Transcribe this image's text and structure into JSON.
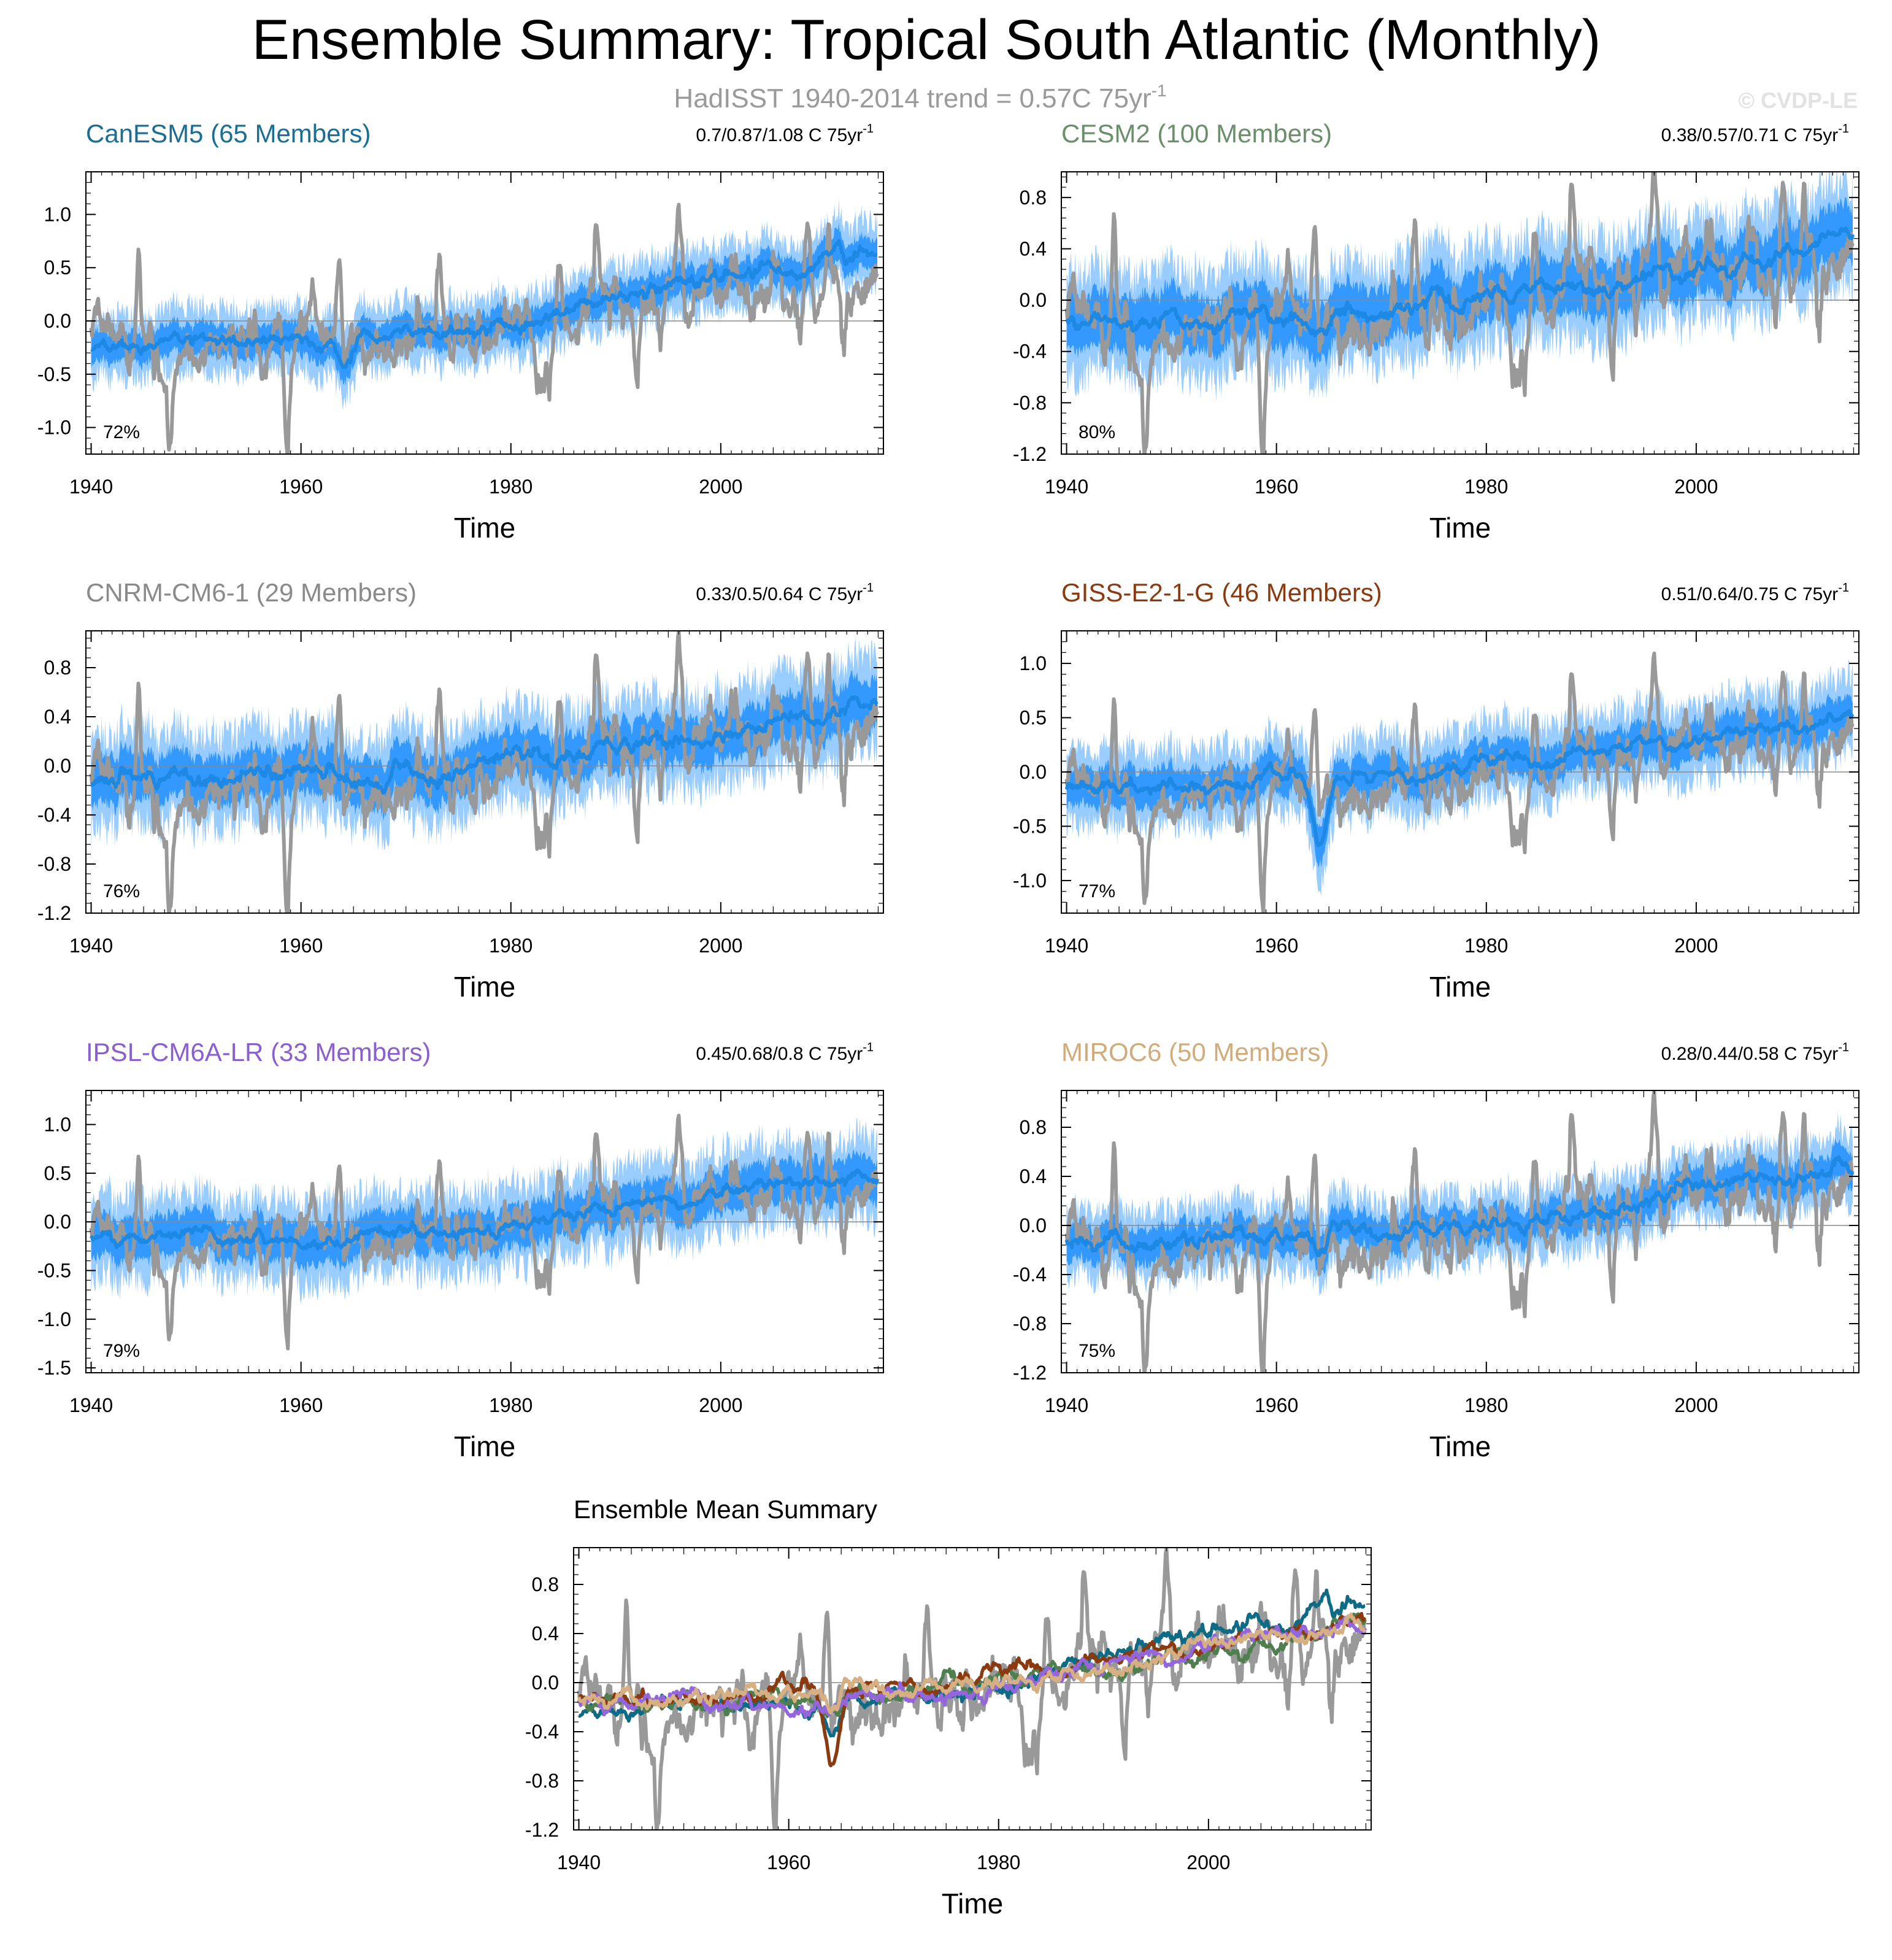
{
  "title": "Ensemble Summary: Tropical South Atlantic (Monthly)",
  "subtitle": {
    "text": "HadISST 1940-2014 trend = 0.57C 75yr",
    "superscript": "-1"
  },
  "watermark": "© CVDP-LE",
  "colors": {
    "observations": "#999999",
    "ensemble_mean": "#1e88e5",
    "inner_spread": "#3399ff",
    "outer_spread": "#99ccff",
    "zero_line": "#888888"
  },
  "chart_data": [
    {
      "type": "line",
      "model": "CanESM5",
      "title": "CanESM5 (65 Members)",
      "title_color": "#1a6e96",
      "trend_label": "0.7/0.87/1.08 C 75yr",
      "trend_superscript": "-1",
      "pct_label": "72%",
      "xlabel": "Time",
      "xlim": [
        1939.5,
        2015.5
      ],
      "ylim": [
        -1.25,
        1.4
      ],
      "yticks": [
        -1.0,
        -0.5,
        0.0,
        0.5,
        1.0
      ],
      "ytick_labels": [
        "-1.0",
        "-0.5",
        "0.0",
        "0.5",
        "1.0"
      ],
      "xticks": [
        1940,
        1960,
        1980,
        2000
      ],
      "xtick_labels": [
        "1940",
        "1960",
        "1980",
        "2000"
      ],
      "mean_start": -0.25,
      "mean_end": 0.68,
      "outer_halfwidth": 0.3,
      "inner_halfwidth": 0.15,
      "seed": 11,
      "dip_amp": 0.3
    },
    {
      "type": "line",
      "model": "CESM2",
      "title": "CESM2 (100 Members)",
      "title_color": "#6a8f6a",
      "trend_label": "0.38/0.57/0.71 C 75yr",
      "trend_superscript": "-1",
      "pct_label": "80%",
      "xlabel": "Time",
      "xlim": [
        1939.5,
        2015.5
      ],
      "ylim": [
        -1.2,
        1.0
      ],
      "yticks": [
        -1.2,
        -0.8,
        -0.4,
        0.0,
        0.4,
        0.8
      ],
      "ytick_labels": [
        "-1.2",
        "-0.8",
        "-0.4",
        "0.0",
        "0.4",
        "0.8"
      ],
      "xticks": [
        1940,
        1960,
        1980,
        2000
      ],
      "xtick_labels": [
        "1940",
        "1960",
        "1980",
        "2000"
      ],
      "mean_start": -0.18,
      "mean_end": 0.44,
      "outer_halfwidth": 0.4,
      "inner_halfwidth": 0.22,
      "seed": 23,
      "dip_amp": 0.1
    },
    {
      "type": "line",
      "model": "CNRM-CM6-1",
      "title": "CNRM-CM6-1 (29 Members)",
      "title_color": "#8a8a8a",
      "trend_label": "0.33/0.5/0.64 C 75yr",
      "trend_superscript": "-1",
      "pct_label": "76%",
      "xlabel": "Time",
      "xlim": [
        1939.5,
        2015.5
      ],
      "ylim": [
        -1.2,
        1.1
      ],
      "yticks": [
        -1.2,
        -0.8,
        -0.4,
        0.0,
        0.4,
        0.8
      ],
      "ytick_labels": [
        "-1.2",
        "-0.8",
        "-0.4",
        "0.0",
        "0.4",
        "0.8"
      ],
      "xticks": [
        1940,
        1960,
        1980,
        2000
      ],
      "xtick_labels": [
        "1940",
        "1960",
        "1980",
        "2000"
      ],
      "mean_start": -0.15,
      "mean_end": 0.45,
      "outer_halfwidth": 0.38,
      "inner_halfwidth": 0.2,
      "seed": 37,
      "dip_amp": 0.1
    },
    {
      "type": "line",
      "model": "GISS-E2-1-G",
      "title": "GISS-E2-1-G (46 Members)",
      "title_color": "#8b3a0f",
      "trend_label": "0.51/0.64/0.75 C 75yr",
      "trend_superscript": "-1",
      "pct_label": "77%",
      "xlabel": "Time",
      "xlim": [
        1939.5,
        2015.5
      ],
      "ylim": [
        -1.3,
        1.3
      ],
      "yticks": [
        -1.0,
        -0.5,
        0.0,
        0.5,
        1.0
      ],
      "ytick_labels": [
        "-1.0",
        "-0.5",
        "0.0",
        "0.5",
        "1.0"
      ],
      "xticks": [
        1940,
        1960,
        1980,
        2000
      ],
      "xtick_labels": [
        "1940",
        "1960",
        "1980",
        "2000"
      ],
      "mean_start": -0.15,
      "mean_end": 0.5,
      "outer_halfwidth": 0.35,
      "inner_halfwidth": 0.18,
      "seed": 41,
      "dip_amp": 0.55
    },
    {
      "type": "line",
      "model": "IPSL-CM6A-LR",
      "title": "IPSL-CM6A-LR (33 Members)",
      "title_color": "#8a5fd1",
      "trend_label": "0.45/0.68/0.8 C 75yr",
      "trend_superscript": "-1",
      "pct_label": "79%",
      "xlabel": "Time",
      "xlim": [
        1939.5,
        2015.5
      ],
      "ylim": [
        -1.55,
        1.35
      ],
      "yticks": [
        -1.5,
        -1.0,
        -0.5,
        0.0,
        0.5,
        1.0
      ],
      "ytick_labels": [
        "-1.5",
        "-1.0",
        "-0.5",
        "0.0",
        "0.5",
        "1.0"
      ],
      "xticks": [
        1940,
        1960,
        1980,
        2000
      ],
      "xtick_labels": [
        "1940",
        "1960",
        "1980",
        "2000"
      ],
      "mean_start": -0.2,
      "mean_end": 0.48,
      "outer_halfwidth": 0.42,
      "inner_halfwidth": 0.22,
      "seed": 53,
      "dip_amp": 0.15
    },
    {
      "type": "line",
      "model": "MIROC6",
      "title": "MIROC6 (50 Members)",
      "title_color": "#d2ab7c",
      "trend_label": "0.28/0.44/0.58 C 75yr",
      "trend_superscript": "-1",
      "pct_label": "75%",
      "xlabel": "Time",
      "xlim": [
        1939.5,
        2015.5
      ],
      "ylim": [
        -1.2,
        1.1
      ],
      "yticks": [
        -1.2,
        -0.8,
        -0.4,
        0.0,
        0.4,
        0.8
      ],
      "ytick_labels": [
        "-1.2",
        "-0.8",
        "-0.4",
        "0.0",
        "0.4",
        "0.8"
      ],
      "xticks": [
        1940,
        1960,
        1980,
        2000
      ],
      "xtick_labels": [
        "1940",
        "1960",
        "1980",
        "2000"
      ],
      "mean_start": -0.12,
      "mean_end": 0.4,
      "outer_halfwidth": 0.28,
      "inner_halfwidth": 0.15,
      "seed": 67,
      "dip_amp": 0.2
    },
    {
      "type": "line",
      "model": "Ensemble Mean Summary",
      "title": "Ensemble Mean Summary",
      "title_color": "#000000",
      "xlabel": "Time",
      "xlim": [
        1939.5,
        2015.5
      ],
      "ylim": [
        -1.2,
        1.1
      ],
      "yticks": [
        -1.2,
        -0.8,
        -0.4,
        0.0,
        0.4,
        0.8
      ],
      "ytick_labels": [
        "-1.2",
        "-0.8",
        "-0.4",
        "0.0",
        "0.4",
        "0.8"
      ],
      "xticks": [
        1940,
        1960,
        1980,
        2000
      ],
      "xtick_labels": [
        "1940",
        "1960",
        "1980",
        "2000"
      ],
      "series": [
        {
          "name": "CanESM5",
          "color": "#0e6b86",
          "start": -0.25,
          "end": 0.68,
          "seed": 11,
          "dip_amp": 0.3
        },
        {
          "name": "CESM2",
          "color": "#4f7f4f",
          "start": -0.18,
          "end": 0.44,
          "seed": 23,
          "dip_amp": 0.1
        },
        {
          "name": "GISS-E2-1-G",
          "color": "#8b3a0f",
          "start": -0.15,
          "end": 0.5,
          "seed": 41,
          "dip_amp": 0.55
        },
        {
          "name": "IPSL-CM6A-LR",
          "color": "#9466db",
          "start": -0.2,
          "end": 0.48,
          "seed": 53,
          "dip_amp": 0.15
        },
        {
          "name": "MIROC6",
          "color": "#d6b083",
          "start": -0.12,
          "end": 0.4,
          "seed": 67,
          "dip_amp": 0.2
        }
      ]
    }
  ]
}
